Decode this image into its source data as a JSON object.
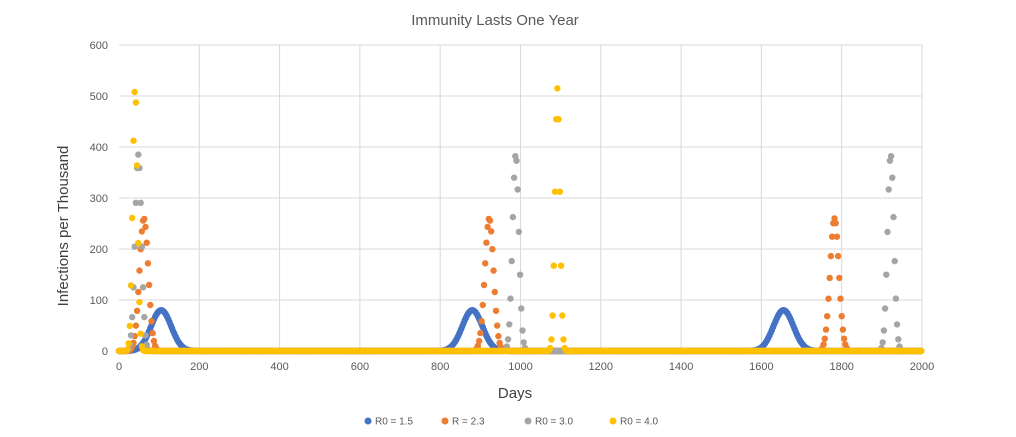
{
  "chart_data": {
    "type": "scatter",
    "title": "Immunity Lasts One Year",
    "xlabel": "Days",
    "ylabel": "Infections per Thousand",
    "xlim": [
      0,
      2000
    ],
    "ylim": [
      0,
      600
    ],
    "xticks": [
      0,
      200,
      400,
      600,
      800,
      1000,
      1200,
      1400,
      1600,
      1800,
      2000
    ],
    "yticks": [
      0,
      100,
      200,
      300,
      400,
      500,
      600
    ],
    "grid": true,
    "legend_position": "bottom",
    "series": [
      {
        "name": "R0 = 1.5",
        "color": "#4472C4",
        "peaks": [
          {
            "center": 105,
            "height": 80,
            "width": 25
          },
          {
            "center": 880,
            "height": 80,
            "width": 25
          },
          {
            "center": 1655,
            "height": 80,
            "width": 25
          }
        ]
      },
      {
        "name": "R = 2.3",
        "color": "#ED7D31",
        "peaks": [
          {
            "center": 62,
            "height": 260,
            "width": 11
          },
          {
            "center": 922,
            "height": 260,
            "width": 11
          },
          {
            "center": 1782,
            "height": 260,
            "width": 11
          }
        ]
      },
      {
        "name": "R0 = 3.0",
        "color": "#A5A5A5",
        "peaks": [
          {
            "center": 48,
            "height": 385,
            "width": 8
          },
          {
            "center": 988,
            "height": 385,
            "width": 8
          },
          {
            "center": 1922,
            "height": 385,
            "width": 8
          }
        ]
      },
      {
        "name": "R0 = 4.0",
        "color": "#FFC000",
        "peaks": [
          {
            "center": 40,
            "height": 515,
            "width": 6
          },
          {
            "center": 1092,
            "height": 515,
            "width": 6
          }
        ]
      }
    ]
  }
}
